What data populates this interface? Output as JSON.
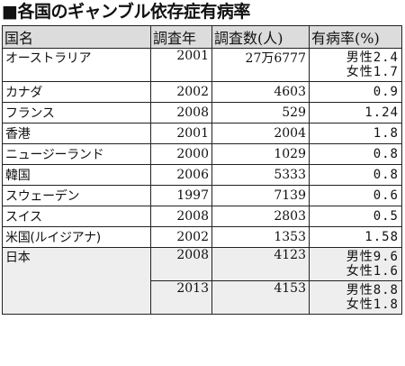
{
  "title": "■各国のギャンブル依存症有病率",
  "headers": {
    "country": "国名",
    "year": "調査年",
    "count": "調査数(人)",
    "rate": "有病率(%)"
  },
  "rows": [
    {
      "country": "オーストラリア",
      "year": "2001",
      "count": "27万6777",
      "rate_lines": [
        "男性2.4",
        "女性1.7"
      ]
    },
    {
      "country": "カナダ",
      "year": "2002",
      "count": "4603",
      "rate_lines": [
        "0.9"
      ]
    },
    {
      "country": "フランス",
      "year": "2008",
      "count": "529",
      "rate_lines": [
        "1.24"
      ]
    },
    {
      "country": "香港",
      "year": "2001",
      "count": "2004",
      "rate_lines": [
        "1.8"
      ]
    },
    {
      "country": "ニュージーランド",
      "year": "2000",
      "count": "1029",
      "rate_lines": [
        "0.8"
      ]
    },
    {
      "country": "韓国",
      "year": "2006",
      "count": "5333",
      "rate_lines": [
        "0.8"
      ]
    },
    {
      "country": "スウェーデン",
      "year": "1997",
      "count": "7139",
      "rate_lines": [
        "0.6"
      ]
    },
    {
      "country": "スイス",
      "year": "2008",
      "count": "2803",
      "rate_lines": [
        "0.5"
      ]
    },
    {
      "country": "米国(ルイジアナ)",
      "year": "2002",
      "count": "1353",
      "rate_lines": [
        "1.58"
      ]
    }
  ],
  "japan": {
    "country": "日本",
    "entries": [
      {
        "year": "2008",
        "count": "4123",
        "rate_lines": [
          "男性9.6",
          "女性1.6"
        ]
      },
      {
        "year": "2013",
        "count": "4153",
        "rate_lines": [
          "男性8.8",
          "女性1.8"
        ]
      }
    ]
  }
}
